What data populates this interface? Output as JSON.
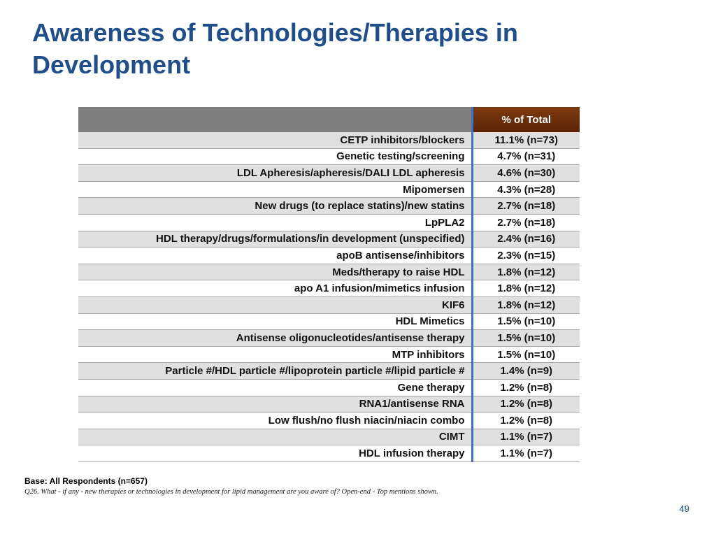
{
  "title": "Awareness of Technologies/Therapies in Development",
  "table": {
    "header_label": "",
    "header_value": "% of Total",
    "rows": [
      {
        "label": "CETP inhibitors/blockers",
        "value": "11.1% (n=73)"
      },
      {
        "label": "Genetic testing/screening",
        "value": "4.7% (n=31)"
      },
      {
        "label": "LDL Apheresis/apheresis/DALI LDL apheresis",
        "value": "4.6% (n=30)"
      },
      {
        "label": "Mipomersen",
        "value": "4.3% (n=28)"
      },
      {
        "label": "New drugs (to replace statins)/new statins",
        "value": "2.7% (n=18)"
      },
      {
        "label": "LpPLA2",
        "value": "2.7% (n=18)"
      },
      {
        "label": "HDL therapy/drugs/formulations/in development (unspecified)",
        "value": "2.4% (n=16)"
      },
      {
        "label": "apoB antisense/inhibitors",
        "value": "2.3% (n=15)"
      },
      {
        "label": "Meds/therapy to raise HDL",
        "value": "1.8% (n=12)"
      },
      {
        "label": "apo A1 infusion/mimetics infusion",
        "value": "1.8% (n=12)"
      },
      {
        "label": "KIF6",
        "value": "1.8% (n=12)"
      },
      {
        "label": "HDL Mimetics",
        "value": "1.5% (n=10)"
      },
      {
        "label": "Antisense oligonucleotides/antisense therapy",
        "value": "1.5% (n=10)"
      },
      {
        "label": "MTP inhibitors",
        "value": "1.5% (n=10)"
      },
      {
        "label": "Particle #/HDL particle #/lipoprotein particle #/lipid particle #",
        "value": "1.4% (n=9)"
      },
      {
        "label": "Gene therapy",
        "value": "1.2% (n=8)"
      },
      {
        "label": "RNA1/antisense RNA",
        "value": "1.2% (n=8)"
      },
      {
        "label": "Low flush/no flush niacin/niacin combo",
        "value": "1.2% (n=8)"
      },
      {
        "label": "CIMT",
        "value": "1.1% (n=7)"
      },
      {
        "label": "HDL infusion therapy",
        "value": "1.1% (n=7)"
      }
    ]
  },
  "footnote": {
    "base": "Base: All Respondents (n=657)",
    "question": "Q26.  What - if any - new therapies or technologies in development for lipid management are you aware of? Open-end - Top mentions shown."
  },
  "page_number": "49"
}
